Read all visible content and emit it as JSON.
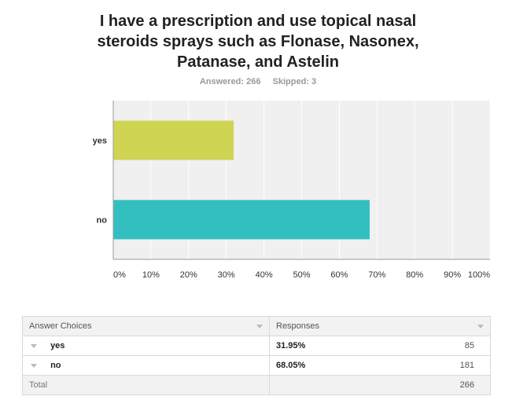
{
  "header": {
    "title_lines": [
      "I have a prescription and use topical nasal",
      "steroids sprays such as Flonase, Nasonex,",
      "Patanase, and Astelin"
    ],
    "answered": "Answered: 266",
    "skipped": "Skipped: 3"
  },
  "chart_data": {
    "type": "bar",
    "orientation": "horizontal",
    "categories": [
      "yes",
      "no"
    ],
    "values": [
      31.95,
      68.05
    ],
    "colors": [
      "#d0d453",
      "#33bfbf"
    ],
    "xlim": [
      0,
      100
    ],
    "x_ticks": [
      "0%",
      "10%",
      "20%",
      "30%",
      "40%",
      "50%",
      "60%",
      "70%",
      "80%",
      "90%",
      "100%"
    ],
    "grid": true,
    "background": "#f0f0f0"
  },
  "table": {
    "headers": [
      "Answer Choices",
      "Responses"
    ],
    "rows": [
      {
        "choice": "yes",
        "percent": "31.95%",
        "count": "85"
      },
      {
        "choice": "no",
        "percent": "68.05%",
        "count": "181"
      }
    ],
    "total_label": "Total",
    "total_count": "266"
  }
}
